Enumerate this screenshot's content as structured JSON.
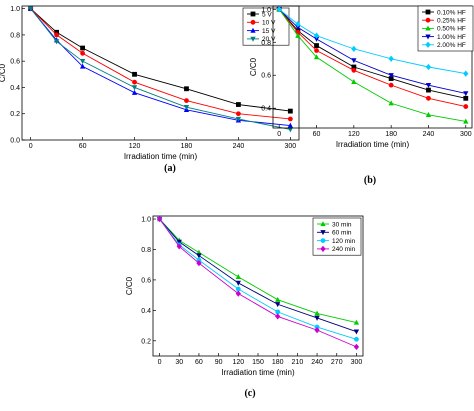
{
  "chart_data": [
    {
      "type": "line",
      "panel_label": "(a)",
      "xlabel": "Irradiation time (min)",
      "ylabel": "C/C0",
      "xlim": [
        -10,
        310
      ],
      "ylim": [
        0,
        1.02
      ],
      "x_ticks": [
        "0",
        "60",
        "120",
        "180",
        "240",
        "300"
      ],
      "y_ticks": [
        "0.0",
        "0.2",
        "0.4",
        "0.6",
        "0.8",
        "1.0"
      ],
      "x": [
        0,
        30,
        60,
        120,
        180,
        240,
        300
      ],
      "legend_position": "top-right",
      "series": [
        {
          "name": "5 V",
          "color": "#000000",
          "marker": "square",
          "values": [
            1.0,
            0.82,
            0.7,
            0.5,
            0.39,
            0.27,
            0.22
          ]
        },
        {
          "name": "10 V",
          "color": "#ff0000",
          "marker": "circle",
          "values": [
            1.0,
            0.8,
            0.66,
            0.44,
            0.3,
            0.2,
            0.16
          ]
        },
        {
          "name": "15 V",
          "color": "#0000ff",
          "marker": "triangle",
          "values": [
            1.0,
            0.76,
            0.56,
            0.36,
            0.23,
            0.15,
            0.11
          ]
        },
        {
          "name": "20 V",
          "color": "#008080",
          "marker": "tri-down",
          "values": [
            1.0,
            0.75,
            0.6,
            0.4,
            0.25,
            0.16,
            0.08
          ]
        }
      ]
    },
    {
      "type": "line",
      "panel_label": "(b)",
      "xlabel": "Irradiation time (min)",
      "ylabel": "C/C0",
      "xlim": [
        -10,
        310
      ],
      "ylim": [
        0.28,
        1.02
      ],
      "x_ticks": [
        "0",
        "60",
        "120",
        "180",
        "240",
        "300"
      ],
      "y_ticks": [
        "0.4",
        "0.6",
        "0.8",
        "1.0"
      ],
      "x": [
        0,
        30,
        60,
        120,
        180,
        240,
        300
      ],
      "legend_position": "top-right",
      "series": [
        {
          "name": "0.10% HF",
          "color": "#000000",
          "marker": "square",
          "values": [
            1.0,
            0.87,
            0.78,
            0.65,
            0.58,
            0.51,
            0.46
          ]
        },
        {
          "name": "0.25% HF",
          "color": "#ff0000",
          "marker": "circle",
          "values": [
            1.0,
            0.86,
            0.75,
            0.63,
            0.54,
            0.46,
            0.41
          ]
        },
        {
          "name": "0.50% HF",
          "color": "#00cc00",
          "marker": "triangle",
          "values": [
            1.0,
            0.84,
            0.71,
            0.56,
            0.43,
            0.36,
            0.32
          ]
        },
        {
          "name": "1.00% HF",
          "color": "#0000cc",
          "marker": "tri-down",
          "values": [
            1.0,
            0.89,
            0.82,
            0.69,
            0.6,
            0.54,
            0.49
          ]
        },
        {
          "name": "2.00% HF",
          "color": "#00ccff",
          "marker": "diamond",
          "values": [
            1.0,
            0.91,
            0.84,
            0.76,
            0.7,
            0.65,
            0.61
          ]
        }
      ]
    },
    {
      "type": "line",
      "panel_label": "(c)",
      "xlabel": "Irradiation time (min)",
      "ylabel": "C/C0",
      "xlim": [
        -10,
        310
      ],
      "ylim": [
        0.1,
        1.02
      ],
      "x_ticks": [
        "0",
        "30",
        "60",
        "90",
        "120",
        "150",
        "180",
        "210",
        "240",
        "270",
        "300"
      ],
      "y_ticks": [
        "0.2",
        "0.4",
        "0.6",
        "0.8",
        "1.0"
      ],
      "x": [
        0,
        30,
        60,
        120,
        180,
        240,
        300
      ],
      "legend_position": "top-right",
      "series": [
        {
          "name": "30 min",
          "color": "#00cc00",
          "marker": "triangle",
          "values": [
            1.0,
            0.86,
            0.78,
            0.62,
            0.47,
            0.38,
            0.32
          ]
        },
        {
          "name": "60 min",
          "color": "#000080",
          "marker": "tri-down",
          "values": [
            1.0,
            0.85,
            0.76,
            0.58,
            0.44,
            0.35,
            0.26
          ]
        },
        {
          "name": "120 min",
          "color": "#00ccff",
          "marker": "circle",
          "values": [
            1.0,
            0.83,
            0.73,
            0.54,
            0.39,
            0.29,
            0.21
          ]
        },
        {
          "name": "240 min",
          "color": "#cc00cc",
          "marker": "diamond",
          "values": [
            1.0,
            0.82,
            0.71,
            0.51,
            0.36,
            0.27,
            0.16
          ]
        }
      ]
    }
  ]
}
